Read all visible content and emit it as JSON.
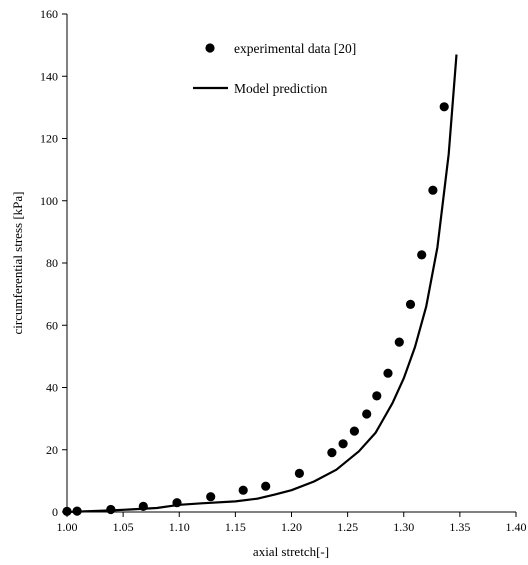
{
  "chart_data": {
    "type": "scatter",
    "xlabel": "axial stretch[-]",
    "ylabel": "circumferential stress [kPa]",
    "xlim": [
      1.0,
      1.4
    ],
    "ylim": [
      0,
      160
    ],
    "x_ticks": [
      "1.00",
      "1.05",
      "1.10",
      "1.15",
      "1.20",
      "1.25",
      "1.30",
      "1.35",
      "1.40"
    ],
    "y_ticks": [
      "0",
      "20",
      "40",
      "60",
      "80",
      "100",
      "120",
      "140",
      "160"
    ],
    "grid": false,
    "legend_position": "top-center",
    "series": [
      {
        "name": "experimental data [20]",
        "kind": "scatter",
        "color": "#000000",
        "points": [
          [
            1.0,
            0.2
          ],
          [
            1.009,
            0.3
          ],
          [
            1.039,
            0.8
          ],
          [
            1.068,
            1.8
          ],
          [
            1.098,
            3.0
          ],
          [
            1.128,
            4.9
          ],
          [
            1.157,
            7.0
          ],
          [
            1.177,
            8.3
          ],
          [
            1.207,
            12.4
          ],
          [
            1.236,
            19.1
          ],
          [
            1.246,
            21.9
          ],
          [
            1.256,
            26.0
          ],
          [
            1.267,
            31.5
          ],
          [
            1.276,
            37.3
          ],
          [
            1.286,
            44.6
          ],
          [
            1.296,
            54.6
          ],
          [
            1.306,
            66.7
          ],
          [
            1.316,
            82.6
          ],
          [
            1.326,
            103.4
          ],
          [
            1.336,
            130.2
          ]
        ]
      },
      {
        "name": "Model prediction",
        "kind": "line",
        "color": "#000000",
        "points": [
          [
            1.0,
            0.0
          ],
          [
            1.04,
            0.5
          ],
          [
            1.08,
            1.3
          ],
          [
            1.1,
            2.3
          ],
          [
            1.12,
            2.8
          ],
          [
            1.15,
            3.4
          ],
          [
            1.17,
            4.3
          ],
          [
            1.185,
            5.6
          ],
          [
            1.2,
            7.0
          ],
          [
            1.22,
            9.8
          ],
          [
            1.24,
            13.6
          ],
          [
            1.26,
            19.5
          ],
          [
            1.275,
            25.5
          ],
          [
            1.29,
            35.0
          ],
          [
            1.3,
            43.0
          ],
          [
            1.31,
            53.0
          ],
          [
            1.32,
            66.0
          ],
          [
            1.33,
            85.0
          ],
          [
            1.34,
            115.0
          ],
          [
            1.347,
            147.0
          ]
        ]
      }
    ]
  }
}
